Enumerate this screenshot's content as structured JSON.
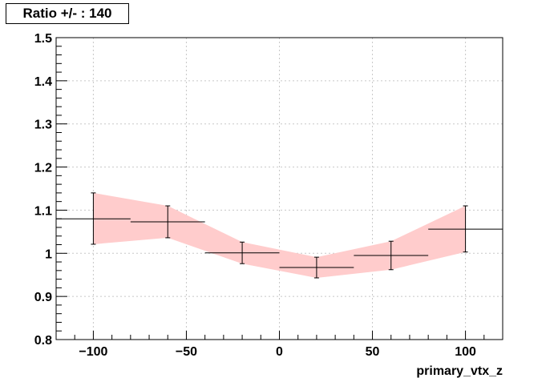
{
  "chart_data": {
    "type": "scatter",
    "title": "Ratio +/- : 140",
    "xlabel": "primary_vtx_z",
    "ylabel": "",
    "xlim": [
      -120,
      120
    ],
    "ylim": [
      0.8,
      1.5
    ],
    "grid": true,
    "x_ticks": [
      -100,
      -50,
      0,
      50,
      100
    ],
    "x_tick_labels": [
      "−100",
      "−50",
      "0",
      "50",
      "100"
    ],
    "y_ticks": [
      0.8,
      0.9,
      1.0,
      1.1,
      1.2,
      1.3,
      1.4,
      1.5
    ],
    "y_tick_labels": [
      "0.8",
      "0.9",
      "1",
      "1.1",
      "1.2",
      "1.3",
      "1.4",
      "1.5"
    ],
    "series": [
      {
        "points": [
          {
            "x": -100,
            "y": 1.08,
            "xlo": -120,
            "xhi": -80,
            "ylo": 1.021,
            "yhi": 1.14
          },
          {
            "x": -60,
            "y": 1.073,
            "xlo": -80,
            "xhi": -40,
            "ylo": 1.036,
            "yhi": 1.11
          },
          {
            "x": -20,
            "y": 1.001,
            "xlo": -40,
            "xhi": 0,
            "ylo": 0.976,
            "yhi": 1.026
          },
          {
            "x": 20,
            "y": 0.967,
            "xlo": 0,
            "xhi": 40,
            "ylo": 0.943,
            "yhi": 0.991
          },
          {
            "x": 60,
            "y": 0.995,
            "xlo": 40,
            "xhi": 80,
            "ylo": 0.962,
            "yhi": 1.028
          },
          {
            "x": 100,
            "y": 1.056,
            "xlo": 80,
            "xhi": 120,
            "ylo": 1.003,
            "yhi": 1.11
          }
        ]
      }
    ],
    "band": {
      "color": "#ffcccc",
      "x": [
        -100,
        -60,
        -20,
        20,
        60,
        100
      ],
      "upper": [
        1.14,
        1.11,
        1.026,
        0.991,
        1.028,
        1.11
      ],
      "lower": [
        1.021,
        1.036,
        0.976,
        0.943,
        0.962,
        1.003
      ]
    },
    "colors": {
      "band": "#ffcccc",
      "markers": "#000000",
      "grid": "#c8c8c8"
    }
  }
}
